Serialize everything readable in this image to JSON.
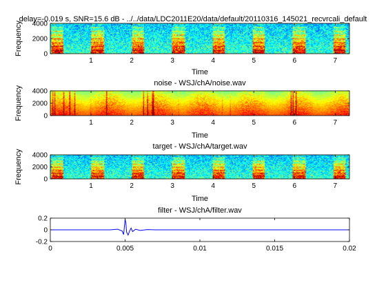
{
  "chart_data": [
    {
      "type": "heatmap",
      "title": "delay=-0.019 s, SNR=15.6 dB - ../../data/LDC2011E20/data/default/20110316_145021_recvrcali_default",
      "xlabel": "Time",
      "ylabel": "Frequency",
      "xlim": [
        0,
        7.35
      ],
      "ylim": [
        0,
        4000
      ],
      "xticks": [
        "1",
        "2",
        "3",
        "4",
        "5",
        "6",
        "7"
      ],
      "yticks": [
        "0",
        "2000",
        "4000"
      ],
      "colormap": "jet"
    },
    {
      "type": "heatmap",
      "title": "noise - WSJ/chA/noise.wav",
      "xlabel": "Time",
      "ylabel": "Frequency",
      "xlim": [
        0,
        7.35
      ],
      "ylim": [
        0,
        4000
      ],
      "xticks": [
        "1",
        "2",
        "3",
        "4",
        "5",
        "6",
        "7"
      ],
      "yticks": [
        "0",
        "2000",
        "4000"
      ],
      "colormap": "jet"
    },
    {
      "type": "heatmap",
      "title": "target - WSJ/chA/target.wav",
      "xlabel": "Time",
      "ylabel": "Frequency",
      "xlim": [
        0,
        7.35
      ],
      "ylim": [
        0,
        4000
      ],
      "xticks": [
        "1",
        "2",
        "3",
        "4",
        "5",
        "6",
        "7"
      ],
      "yticks": [
        "0",
        "2000",
        "4000"
      ],
      "colormap": "jet"
    },
    {
      "type": "line",
      "title": "filter - WSJ/chA/filter.wav",
      "xlabel": "",
      "ylabel": "",
      "xlim": [
        0,
        0.02
      ],
      "ylim": [
        -0.2,
        0.2
      ],
      "xticks": [
        "0",
        "0.005",
        "0.01",
        "0.015",
        "0.02"
      ],
      "yticks": [
        "-0.2",
        "0",
        "0.2"
      ],
      "line_color": "#0000ff",
      "series": [
        {
          "x": [
            0,
            0.001,
            0.002,
            0.003,
            0.004,
            0.0045,
            0.0048,
            0.0049,
            0.005,
            0.00505,
            0.0051,
            0.0052,
            0.0053,
            0.0054,
            0.0055,
            0.0057,
            0.006,
            0.0065,
            0.007,
            0.008,
            0.009,
            0.01,
            0.012,
            0.014,
            0.016,
            0.018,
            0.02
          ],
          "y": [
            0,
            0,
            0,
            0,
            0,
            0.01,
            -0.02,
            -0.08,
            0.18,
            0.12,
            -0.04,
            -0.09,
            -0.02,
            0.03,
            -0.03,
            0.01,
            -0.01,
            0.005,
            0,
            0,
            0,
            0,
            0,
            0,
            0,
            0,
            0
          ]
        }
      ]
    }
  ]
}
